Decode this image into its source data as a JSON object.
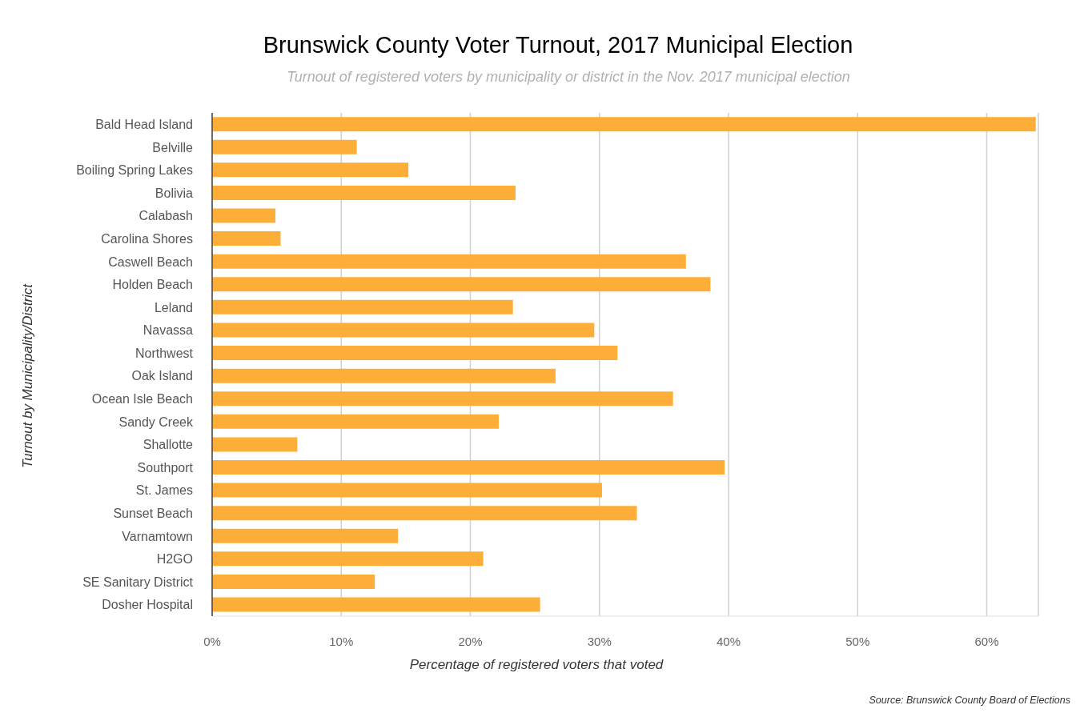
{
  "chart_data": {
    "type": "bar",
    "orientation": "horizontal",
    "title": "Brunswick County Voter Turnout, 2017 Municipal Election",
    "subtitle": "Turnout of registered voters by municipality or district in the Nov. 2017 municipal election",
    "xlabel": "Percentage of registered voters that voted",
    "ylabel": "Turnout by Municipality/District",
    "annotations": [
      "Source: Brunswick County Board of Elections"
    ],
    "categories": [
      "Bald Head Island",
      "Belville",
      "Boiling Spring Lakes",
      "Bolivia",
      "Calabash",
      "Carolina Shores",
      "Caswell Beach",
      "Holden Beach",
      "Leland",
      "Navassa",
      "Northwest",
      "Oak Island",
      "Ocean Isle Beach",
      "Sandy Creek",
      "Shallotte",
      "Southport",
      "St. James",
      "Sunset Beach",
      "Varnamtown",
      "H2GO",
      "SE Sanitary District",
      "Dosher Hospital"
    ],
    "values": [
      63.8,
      11.2,
      15.2,
      23.5,
      4.9,
      5.3,
      36.7,
      38.6,
      23.3,
      29.6,
      31.4,
      26.6,
      35.7,
      22.2,
      6.6,
      39.7,
      30.2,
      32.9,
      14.4,
      21.0,
      12.6,
      25.4
    ],
    "color": "#fdae38",
    "xlim": [
      0,
      64
    ],
    "xticks": [
      {
        "value": 0,
        "label": "0%"
      },
      {
        "value": 10,
        "label": "10%"
      },
      {
        "value": 20,
        "label": "20%"
      },
      {
        "value": 30,
        "label": "30%"
      },
      {
        "value": 40,
        "label": "40%"
      },
      {
        "value": 50,
        "label": "50%"
      },
      {
        "value": 60,
        "label": "60%"
      }
    ],
    "grid": "x"
  }
}
